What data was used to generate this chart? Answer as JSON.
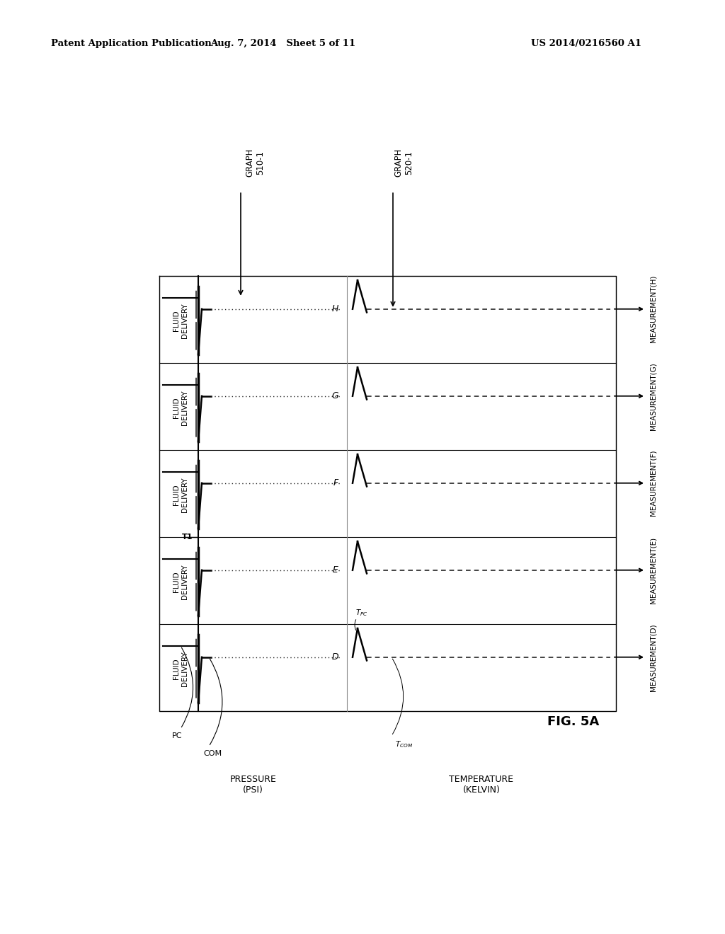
{
  "title_left": "Patent Application Publication",
  "title_center": "Aug. 7, 2014   Sheet 5 of 11",
  "title_right": "US 2014/0216560 A1",
  "fig_label": "FIG. 5A",
  "graph1_label": "GRAPH\n510-1",
  "graph2_label": "GRAPH\n520-1",
  "measurements": [
    "H",
    "G",
    "F",
    "E",
    "D"
  ],
  "measurement_labels": [
    "MEASUREMENT(H)",
    "MEASUREMENT(G)",
    "MEASUREMENT(F)",
    "MEASUREMENT(E)",
    "MEASUREMENT(D)"
  ],
  "fluid_delivery_label": "FLUID\nDELIVERY",
  "pressure_ylabel": "PRESSURE\n(PSI)",
  "temperature_ylabel": "TEMPERATURE\n(KELVIN)",
  "t1_label": "T1",
  "pc_label": "PC",
  "com_label": "COM",
  "bg_color": "#ffffff"
}
